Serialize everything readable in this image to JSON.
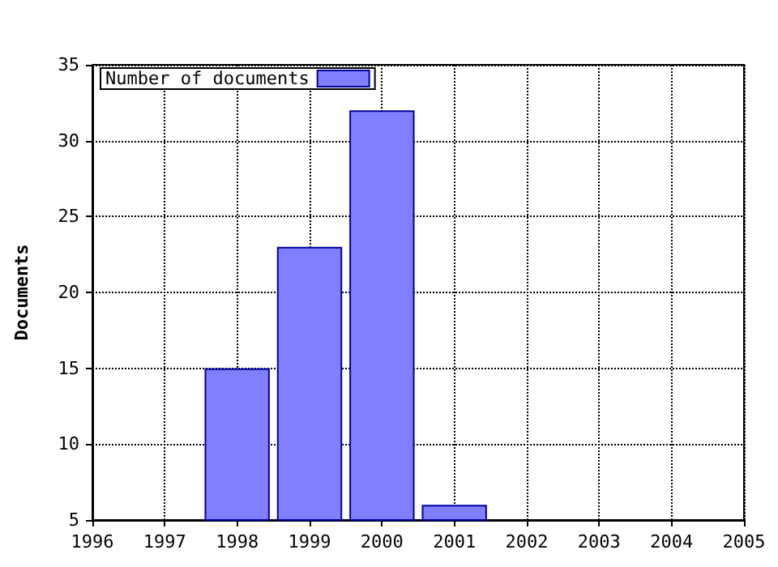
{
  "chart_data": {
    "type": "bar",
    "ylabel": "Documents",
    "x": [
      1998,
      1999,
      2000,
      2001
    ],
    "series": [
      {
        "name": "Number of documents",
        "color": "#8080ff",
        "values": [
          15,
          23,
          32,
          6
        ]
      }
    ],
    "xlim": [
      1996,
      2005
    ],
    "xticks": [
      1996,
      1997,
      1998,
      1999,
      2000,
      2001,
      2002,
      2003,
      2004,
      2005
    ],
    "ylim": [
      5,
      35
    ],
    "yticks": [
      5,
      10,
      15,
      20,
      25,
      30,
      35
    ],
    "grid": true,
    "legend": "top left"
  }
}
